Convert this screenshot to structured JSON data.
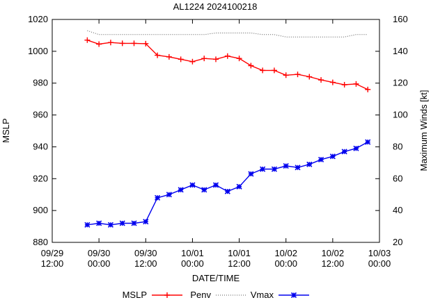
{
  "chart_data": {
    "type": "line",
    "title": "AL1224 2024100218",
    "xlabel": "DATE/TIME",
    "ylabel_left": "MSLP",
    "ylabel_right": "Maximum Winds [kt]",
    "x_ticks": [
      {
        "x": -12,
        "line1": "09/29",
        "line2": "12:00"
      },
      {
        "x": 0,
        "line1": "09/30",
        "line2": "00:00"
      },
      {
        "x": 12,
        "line1": "09/30",
        "line2": "12:00"
      },
      {
        "x": 24,
        "line1": "10/01",
        "line2": "00:00"
      },
      {
        "x": 36,
        "line1": "10/01",
        "line2": "12:00"
      },
      {
        "x": 48,
        "line1": "10/02",
        "line2": "00:00"
      },
      {
        "x": 60,
        "line1": "10/02",
        "line2": "12:00"
      },
      {
        "x": 72,
        "line1": "10/03",
        "line2": "00:00"
      }
    ],
    "x_range_hours_from_0930_0000": [
      -12,
      72
    ],
    "y_left_range": [
      880,
      1020
    ],
    "y_left_ticks": [
      880,
      900,
      920,
      940,
      960,
      980,
      1000,
      1020
    ],
    "y_right_range": [
      20,
      160
    ],
    "y_right_ticks": [
      20,
      40,
      60,
      80,
      100,
      120,
      140,
      160
    ],
    "x_hours": [
      -3,
      0,
      3,
      6,
      9,
      12,
      15,
      18,
      21,
      24,
      27,
      30,
      33,
      36,
      39,
      42,
      45,
      48,
      51,
      54,
      57,
      60,
      63,
      66,
      69
    ],
    "series": [
      {
        "name": "MSLP",
        "axis": "left",
        "color": "#ff0000",
        "marker": "plus",
        "values": [
          1007,
          1004.5,
          1005.5,
          1005,
          1005,
          1004.8,
          997.5,
          996.5,
          995,
          993.5,
          995.5,
          995,
          997,
          995.5,
          991,
          988,
          988,
          985,
          985.5,
          984,
          982,
          980.5,
          979,
          979.5,
          976
        ]
      },
      {
        "name": "Penv",
        "axis": "left",
        "color": "#555555",
        "style": "dotted",
        "values": [
          1013,
          1010.5,
          1010.5,
          1010.5,
          1010.5,
          1010.5,
          1010.5,
          1010.5,
          1010.5,
          1010.5,
          1010.5,
          1011.5,
          1011.5,
          1011.5,
          1011.5,
          1010.5,
          1010.5,
          1009,
          1009,
          1009,
          1009,
          1009,
          1009,
          1010.5,
          1010.5
        ]
      },
      {
        "name": "Vmax",
        "axis": "right",
        "color": "#0000ee",
        "marker": "star",
        "values": [
          31,
          32,
          31,
          32,
          32,
          33,
          48,
          50,
          53,
          56,
          53,
          56,
          52,
          55,
          63,
          66,
          66,
          68,
          67,
          69,
          72,
          74,
          77,
          79,
          83
        ]
      }
    ],
    "legend_position": "bottom"
  }
}
